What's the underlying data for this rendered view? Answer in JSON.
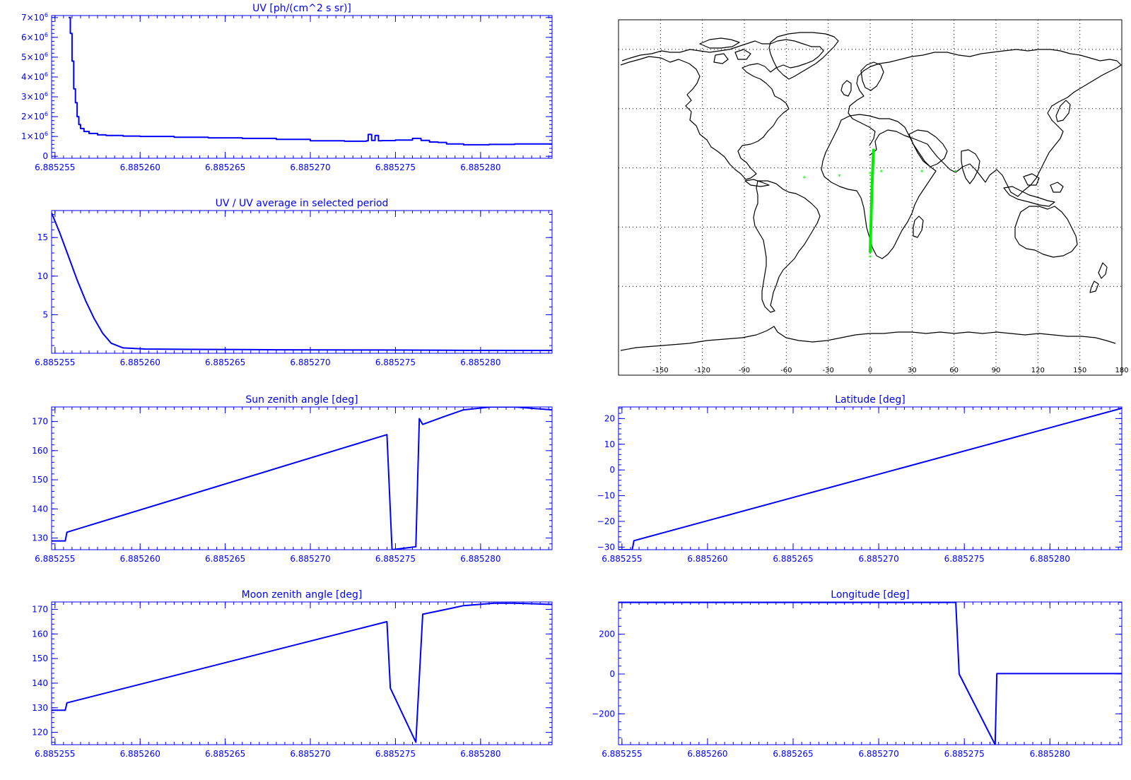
{
  "colors": {
    "axis": "#0000ff",
    "series": "#0000ff",
    "map_ink": "#000000",
    "track": "#00ee00",
    "background": "#ffffff"
  },
  "chart_data": [
    {
      "id": "uv",
      "type": "line",
      "title": "UV [ph/(cm^2 s sr)]",
      "xlim": [
        6.8852548,
        6.8852842
      ],
      "xticks": [
        6.885255,
        6.88526,
        6.885265,
        6.88527,
        6.885275,
        6.88528
      ],
      "xtick_labels": [
        "6.885255",
        "6.885260",
        "6.885265",
        "6.885270",
        "6.885275",
        "6.885280"
      ],
      "ylim": [
        -100000,
        7100000
      ],
      "yticks": [
        0,
        1000000,
        2000000,
        3000000,
        4000000,
        5000000,
        6000000,
        7000000
      ],
      "ytick_labels": [
        {
          "base": "0",
          "exp": ""
        },
        {
          "base": "1×10",
          "exp": "6"
        },
        {
          "base": "2×10",
          "exp": "6"
        },
        {
          "base": "3×10",
          "exp": "6"
        },
        {
          "base": "4×10",
          "exp": "6"
        },
        {
          "base": "5×10",
          "exp": "6"
        },
        {
          "base": "6×10",
          "exp": "6"
        },
        {
          "base": "7×10",
          "exp": "6"
        }
      ],
      "x": [
        6.8852558,
        6.8852559,
        6.885256,
        6.8852561,
        6.8852562,
        6.8852563,
        6.8852564,
        6.8852565,
        6.8852567,
        6.885257,
        6.8852575,
        6.885258,
        6.885259,
        6.88526,
        6.885262,
        6.885264,
        6.885266,
        6.885268,
        6.88527,
        6.885272,
        6.8852733,
        6.8852734,
        6.8852736,
        6.8852738,
        6.885274,
        6.8852742,
        6.885275,
        6.885276,
        6.8852765,
        6.885277,
        6.8852775,
        6.885278,
        6.885279,
        6.8852805,
        6.885282,
        6.8852842
      ],
      "y": [
        7000000,
        6200000,
        4800000,
        3400000,
        2700000,
        2000000,
        1600000,
        1400000,
        1250000,
        1150000,
        1080000,
        1050000,
        1020000,
        1000000,
        960000,
        930000,
        900000,
        850000,
        780000,
        760000,
        780000,
        1100000,
        800000,
        1050000,
        780000,
        790000,
        820000,
        900000,
        800000,
        720000,
        700000,
        620000,
        580000,
        600000,
        620000,
        660000
      ]
    },
    {
      "id": "uv-ratio",
      "type": "line",
      "title": "UV / UV average in selected period",
      "xlim": [
        6.8852548,
        6.8852842
      ],
      "xticks": [
        6.885255,
        6.88526,
        6.885265,
        6.88527,
        6.885275,
        6.88528
      ],
      "xtick_labels": [
        "6.885255",
        "6.885260",
        "6.885265",
        "6.885270",
        "6.885275",
        "6.885280"
      ],
      "ylim": [
        0,
        18.5
      ],
      "yticks": [
        5,
        10,
        15
      ],
      "ytick_labels": [
        "5",
        "10",
        "15"
      ],
      "x": [
        6.8852548,
        6.8852553,
        6.8852558,
        6.8852563,
        6.8852568,
        6.8852573,
        6.8852578,
        6.8852583,
        6.885259,
        6.8852603,
        6.885263,
        6.885266,
        6.885268,
        6.885271,
        6.885274,
        6.885277,
        6.885279,
        6.8852842
      ],
      "y": [
        18.2,
        15.5,
        12.5,
        9.5,
        6.8,
        4.5,
        2.6,
        1.3,
        0.7,
        0.55,
        0.5,
        0.48,
        0.45,
        0.43,
        0.42,
        0.4,
        0.38,
        0.37
      ]
    },
    {
      "id": "sun-zenith",
      "type": "line",
      "title": "Sun zenith angle [deg]",
      "xlim": [
        6.8852548,
        6.8852842
      ],
      "xticks": [
        6.885255,
        6.88526,
        6.885265,
        6.88527,
        6.885275,
        6.88528
      ],
      "xtick_labels": [
        "6.885255",
        "6.885260",
        "6.885265",
        "6.885270",
        "6.885275",
        "6.885280"
      ],
      "ylim": [
        126,
        175
      ],
      "yticks": [
        130,
        140,
        150,
        160,
        170
      ],
      "ytick_labels": [
        "130",
        "140",
        "150",
        "160",
        "170"
      ],
      "x": [
        6.8852548,
        6.8852556,
        6.8852557,
        6.8852745,
        6.8852748,
        6.8852762,
        6.8852764,
        6.8852766,
        6.885278,
        6.885279,
        6.8852806,
        6.885282,
        6.8852842
      ],
      "y": [
        129,
        129,
        132,
        165.5,
        126,
        127,
        171,
        169,
        172,
        174,
        175,
        175,
        174
      ]
    },
    {
      "id": "moon-zenith",
      "type": "line",
      "title": "Moon zenith angle [deg]",
      "xlim": [
        6.8852548,
        6.8852842
      ],
      "xticks": [
        6.885255,
        6.88526,
        6.885265,
        6.88527,
        6.885275,
        6.88528
      ],
      "xtick_labels": [
        "6.885255",
        "6.885260",
        "6.885265",
        "6.885270",
        "6.885275",
        "6.885280"
      ],
      "ylim": [
        115,
        173
      ],
      "yticks": [
        120,
        130,
        140,
        150,
        160,
        170
      ],
      "ytick_labels": [
        "120",
        "130",
        "140",
        "150",
        "160",
        "170"
      ],
      "x": [
        6.8852548,
        6.8852556,
        6.8852557,
        6.8852745,
        6.8852747,
        6.8852762,
        6.8852766,
        6.885278,
        6.885279,
        6.8852808,
        6.885282,
        6.8852842
      ],
      "y": [
        129,
        129,
        132,
        165,
        138,
        116,
        168,
        170,
        171.5,
        172.5,
        172.5,
        172
      ]
    },
    {
      "id": "latitude",
      "type": "line",
      "title": "Latitude [deg]",
      "xlim": [
        6.8852548,
        6.8852842
      ],
      "xticks": [
        6.885255,
        6.88526,
        6.885265,
        6.88527,
        6.885275,
        6.88528
      ],
      "xtick_labels": [
        "6.885255",
        "6.885260",
        "6.885265",
        "6.885270",
        "6.885275",
        "6.885280"
      ],
      "ylim": [
        -31,
        24.5
      ],
      "yticks": [
        -30,
        -20,
        -10,
        0,
        10,
        20
      ],
      "ytick_labels": [
        "−30",
        "−20",
        "−10",
        "0",
        "10",
        "20"
      ],
      "x": [
        6.8852548,
        6.8852556,
        6.8852557,
        6.8852842
      ],
      "y": [
        -31,
        -31,
        -27.5,
        24
      ]
    },
    {
      "id": "longitude",
      "type": "line",
      "title": "Longitude [deg]",
      "xlim": [
        6.8852548,
        6.8852842
      ],
      "xticks": [
        6.885255,
        6.88526,
        6.885265,
        6.88527,
        6.885275,
        6.88528
      ],
      "xtick_labels": [
        "6.885255",
        "6.885260",
        "6.885265",
        "6.885270",
        "6.885275",
        "6.885280"
      ],
      "ylim": [
        -355,
        362
      ],
      "yticks": [
        -200,
        0,
        200
      ],
      "ytick_labels": [
        "−200",
        "0",
        "200"
      ],
      "x": [
        6.8852548,
        6.8852745,
        6.8852747,
        6.8852768,
        6.8852769,
        6.8852842
      ],
      "y": [
        360,
        360,
        0,
        -355,
        2,
        2
      ]
    }
  ],
  "map": {
    "xticks": [
      "-150",
      "-120",
      "-90",
      "-60",
      "-30",
      "0",
      "30",
      "60",
      "90",
      "120",
      "150",
      "180"
    ],
    "lon_values": [
      -150,
      -120,
      -90,
      -60,
      -30,
      0,
      30,
      60,
      90,
      120,
      150,
      180
    ],
    "lat_values": [
      75,
      45,
      15,
      -15,
      -45
    ],
    "track": {
      "lon": [
        0,
        0.6,
        1.2,
        1.8,
        2.4
      ],
      "lat": [
        -27.5,
        -12,
        3,
        15,
        24
      ]
    },
    "markers": {
      "lon": [
        -47,
        -22,
        0,
        8,
        37,
        61,
        0
      ],
      "lat": [
        10,
        11,
        12,
        13,
        13,
        13,
        -30
      ]
    }
  }
}
